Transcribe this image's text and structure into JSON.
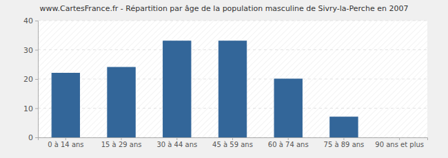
{
  "chart_data": {
    "type": "bar",
    "title": "www.CartesFrance.fr - Répartition par âge de la population masculine de Sivry-la-Perche en 2007",
    "categories": [
      "0 à 14 ans",
      "15 à 29 ans",
      "30 à 44 ans",
      "45 à 59 ans",
      "60 à 74 ans",
      "75 à 89 ans",
      "90 ans et plus"
    ],
    "values": [
      22,
      24,
      33,
      33,
      20,
      7,
      0
    ],
    "color": "#336699",
    "ylim": [
      0,
      40
    ],
    "yticks": [
      0,
      10,
      20,
      30,
      40
    ],
    "grid": true
  }
}
